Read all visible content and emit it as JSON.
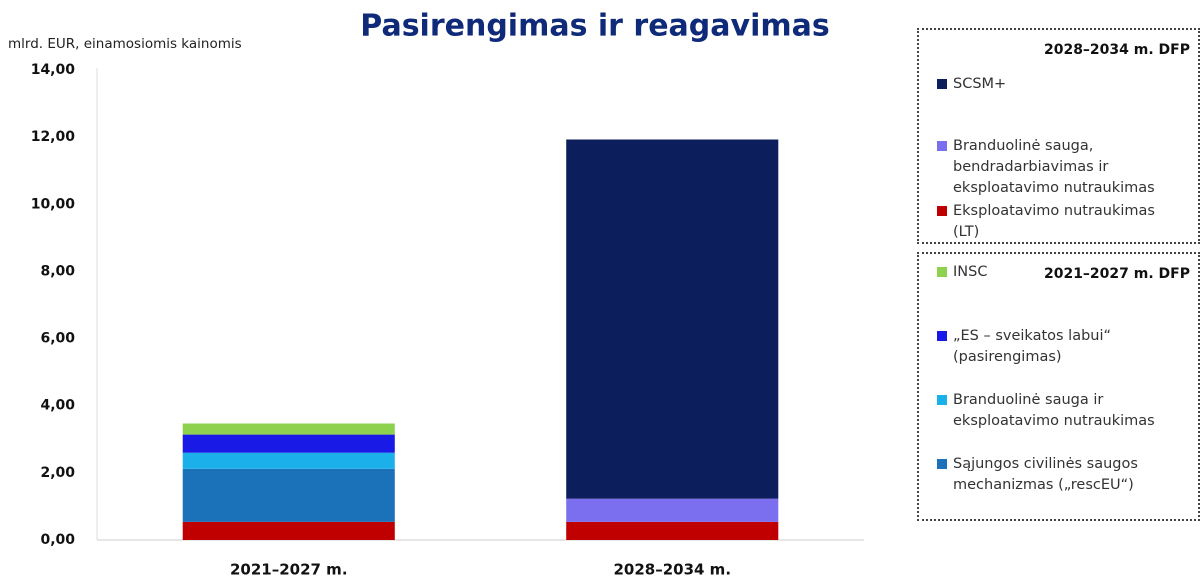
{
  "chart_data": {
    "type": "stacked_bar",
    "title": "Pasirengimas ir reagavimas",
    "y_label": "mlrd. EUR, einamosiomis kainomis",
    "categories": [
      "2021–2027 m.",
      "2028–2034 m."
    ],
    "ylim": [
      0,
      14
    ],
    "yticks": [
      {
        "value": 0,
        "label": "0,00"
      },
      {
        "value": 2,
        "label": "2,00"
      },
      {
        "value": 4,
        "label": "4,00"
      },
      {
        "value": 6,
        "label": "6,00"
      },
      {
        "value": 8,
        "label": "8,00"
      },
      {
        "value": 10,
        "label": "10,00"
      },
      {
        "value": 12,
        "label": "12,00"
      },
      {
        "value": 14,
        "label": "14,00"
      }
    ],
    "grid": false,
    "series": [
      {
        "name": "Eksploatavimo nutraukimas (LT)",
        "color": "#c00000",
        "values": [
          0.54,
          0.54
        ]
      },
      {
        "name": "Sąjungos civilinės saugos mechanizmas („rescEU“)",
        "color": "#1c72b8",
        "values": [
          1.58,
          null
        ]
      },
      {
        "name": "Branduolinė sauga ir eksploatavimo nutraukimas",
        "color": "#1cb0ea",
        "values": [
          0.48,
          null
        ]
      },
      {
        "name": "„ES – sveikatos labui“ (pasirengimas)",
        "color": "#1a1ae6",
        "values": [
          0.54,
          null
        ]
      },
      {
        "name": "INSC",
        "color": "#8dd14f",
        "values": [
          0.33,
          null
        ]
      },
      {
        "name": "Branduolinė sauga, bendradarbiavimas ir eksploatavimo nutraukimas",
        "color": "#7b6ff0",
        "values": [
          null,
          0.69
        ]
      },
      {
        "name": "SCSM+",
        "color": "#0c1f5c",
        "values": [
          null,
          10.7
        ]
      }
    ],
    "legend": [
      {
        "title": "2028–2034 m. DFP",
        "items": [
          6,
          5,
          0
        ]
      },
      {
        "title": "2021–2027 m. DFP",
        "items": [
          4,
          3,
          2,
          1
        ]
      }
    ]
  }
}
